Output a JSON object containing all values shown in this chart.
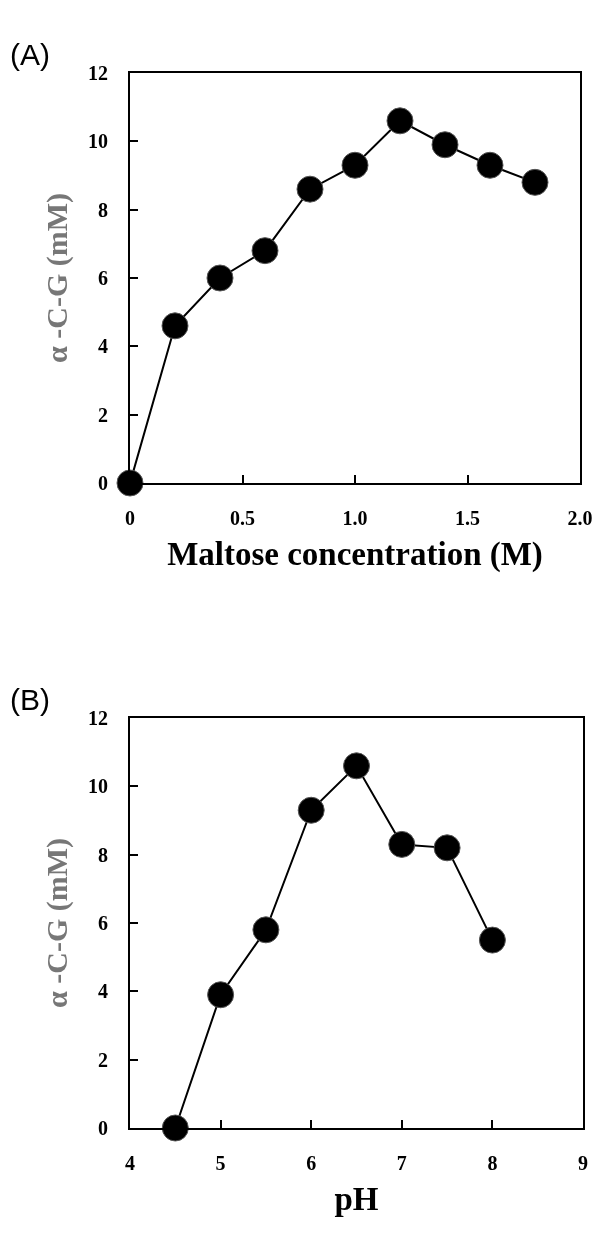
{
  "chart_data": [
    {
      "type": "line",
      "annotations": [
        "(A)"
      ],
      "xlabel": "Maltose concentration (M)",
      "ylabel": "α -C-G (mM)",
      "x": [
        0,
        0.2,
        0.4,
        0.6,
        0.8,
        1.0,
        1.2,
        1.4,
        1.6,
        1.8
      ],
      "series": [
        {
          "color": "#000000",
          "values": [
            0,
            4.6,
            6.0,
            6.8,
            8.6,
            9.3,
            10.6,
            9.9,
            9.3,
            8.8
          ]
        }
      ],
      "xlim": [
        0,
        2
      ],
      "xticks": [
        0,
        0.5,
        {
          "value": 1,
          "label": "1.0"
        },
        1.5,
        {
          "value": 2,
          "label": "2.0"
        }
      ],
      "ylim": [
        0,
        12
      ],
      "yticks": [
        0,
        2,
        4,
        6,
        8,
        10,
        12
      ],
      "grid": false,
      "marker": "circle",
      "line_style": "solid"
    },
    {
      "type": "line",
      "annotations": [
        "(B)"
      ],
      "xlabel": "pH",
      "ylabel": "α -C-G (mM)",
      "x": [
        4.5,
        5,
        5.5,
        6,
        6.5,
        7,
        7.5,
        8
      ],
      "series": [
        {
          "color": "#000000",
          "values": [
            0,
            3.9,
            5.8,
            9.3,
            10.6,
            8.3,
            8.2,
            5.5
          ]
        }
      ],
      "xlim": [
        4,
        9
      ],
      "xticks": [
        4,
        5,
        6,
        7,
        8,
        9
      ],
      "ylim": [
        0,
        12
      ],
      "yticks": [
        0,
        2,
        4,
        6,
        8,
        10,
        12
      ],
      "grid": false,
      "marker": "circle",
      "line_style": "solid"
    }
  ]
}
